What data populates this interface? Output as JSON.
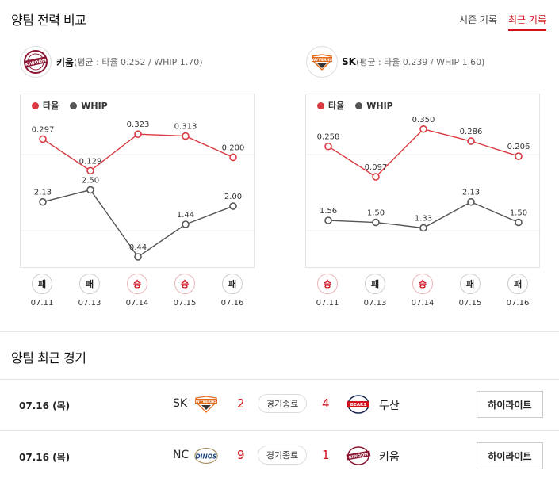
{
  "section1": {
    "title": "양팀 전력 비교"
  },
  "tabs": [
    {
      "label": "시즌 기록",
      "active": false
    },
    {
      "label": "최근 기록",
      "active": true
    }
  ],
  "teams": [
    {
      "name": "키움",
      "logo_text": "KIWOOM",
      "stat": "(평균 : 타율 0.252 / WHIP 1.70)",
      "color": "#8a1632"
    },
    {
      "name": "SK",
      "logo_text": "WYVERNS",
      "stat": "(평균 : 타율 0.239 / WHIP 1.60)",
      "color": "#e26b1b"
    }
  ],
  "legend": {
    "avg": "타율",
    "whip": "WHIP",
    "avg_color": "#d93a42",
    "whip_color": "#555555"
  },
  "chart_data": [
    {
      "type": "line",
      "categories": [
        "07.11",
        "07.13",
        "07.14",
        "07.15",
        "07.16"
      ],
      "series": [
        {
          "name": "타율",
          "values": [
            0.297,
            0.129,
            0.323,
            0.313,
            0.2
          ],
          "labels": [
            "0.297",
            "0.129",
            "0.323",
            "0.313",
            "0.200"
          ]
        },
        {
          "name": "WHIP",
          "values": [
            2.13,
            2.5,
            0.44,
            1.44,
            2.0
          ],
          "labels": [
            "2.13",
            "2.50",
            "0.44",
            "1.44",
            "2.00"
          ]
        }
      ],
      "results": [
        "패",
        "패",
        "승",
        "승",
        "패"
      ]
    },
    {
      "type": "line",
      "categories": [
        "07.11",
        "07.13",
        "07.14",
        "07.15",
        "07.16"
      ],
      "series": [
        {
          "name": "타율",
          "values": [
            0.258,
            0.097,
            0.35,
            0.286,
            0.206
          ],
          "labels": [
            "0.258",
            "0.097",
            "0.350",
            "0.286",
            "0.206"
          ]
        },
        {
          "name": "WHIP",
          "values": [
            1.56,
            1.5,
            1.33,
            2.13,
            1.5
          ],
          "labels": [
            "1.56",
            "1.50",
            "1.33",
            "2.13",
            "1.50"
          ]
        }
      ],
      "results": [
        "승",
        "패",
        "승",
        "패",
        "패"
      ]
    }
  ],
  "section2": {
    "title": "양팀 최근 경기"
  },
  "games": [
    {
      "date": "07.16 (목)",
      "home": "SK",
      "home_logo": "WYVERNS",
      "home_score": "2",
      "status": "경기종료",
      "away_score": "4",
      "away": "두산",
      "away_logo": "BEARS",
      "button": "하이라이트"
    },
    {
      "date": "07.16 (목)",
      "home": "NC",
      "home_logo": "DINOS",
      "home_score": "9",
      "status": "경기종료",
      "away_score": "1",
      "away": "키움",
      "away_logo": "KIWOOM",
      "button": "하이라이트"
    }
  ]
}
